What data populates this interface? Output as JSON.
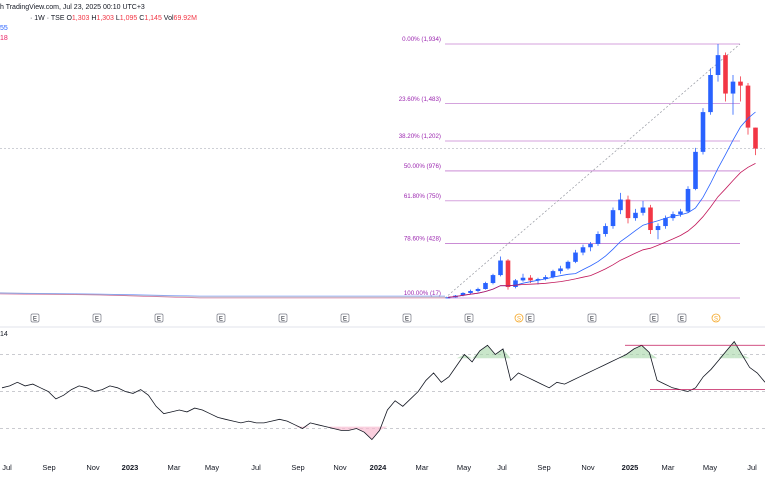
{
  "header": {
    "title": "h TradingView.com, Jul 23, 2025 00:10 UTC+3",
    "symbol": "· 1W · TSE",
    "ohlc": [
      {
        "k": "O",
        "v": "1,303"
      },
      {
        "k": "H",
        "v": "1,303"
      },
      {
        "k": "L",
        "v": "1,095"
      },
      {
        "k": "C",
        "v": "1,145"
      },
      {
        "k": "Vol",
        "v": "69.92M"
      }
    ],
    "ma_fast_label": "55",
    "ma_slow_label": "18",
    "rsi_label": "14"
  },
  "colors": {
    "up": "#2962ff",
    "down": "#f23645",
    "fib": "#9c27b0",
    "ma_fast": "#2962ff",
    "ma_slow": "#c2185b",
    "rsi": "#131722",
    "rsi_overbought_fill": "#a5d6a7",
    "rsi_oversold_fill": "#f8bbd0",
    "earnings": "#787b86",
    "dividend": "#f5a623"
  },
  "chart_data": {
    "type": "candlestick",
    "fib_levels": [
      {
        "label": "0.00% (1,934)",
        "value": 1934
      },
      {
        "label": "23.60% (1,483)",
        "value": 1483
      },
      {
        "label": "38.20% (1,202)",
        "value": 1202
      },
      {
        "label": "50.00% (976)",
        "value": 976
      },
      {
        "label": "61.80% (750)",
        "value": 750
      },
      {
        "label": "78.60% (428)",
        "value": 428
      },
      {
        "label": "100.00% (17)",
        "value": 17
      }
    ],
    "price_range": [
      17,
      1934
    ],
    "current_close": 1145,
    "candles_2024_2025": [
      {
        "o": 17,
        "h": 25,
        "l": 15,
        "c": 22
      },
      {
        "o": 22,
        "h": 40,
        "l": 20,
        "c": 35
      },
      {
        "o": 35,
        "h": 60,
        "l": 30,
        "c": 55
      },
      {
        "o": 55,
        "h": 80,
        "l": 45,
        "c": 70
      },
      {
        "o": 70,
        "h": 95,
        "l": 60,
        "c": 85
      },
      {
        "o": 85,
        "h": 140,
        "l": 80,
        "c": 130
      },
      {
        "o": 130,
        "h": 200,
        "l": 120,
        "c": 190
      },
      {
        "o": 190,
        "h": 330,
        "l": 180,
        "c": 300
      },
      {
        "o": 300,
        "h": 310,
        "l": 80,
        "c": 100
      },
      {
        "o": 100,
        "h": 160,
        "l": 90,
        "c": 150
      },
      {
        "o": 150,
        "h": 200,
        "l": 140,
        "c": 170
      },
      {
        "o": 170,
        "h": 190,
        "l": 130,
        "c": 150
      },
      {
        "o": 150,
        "h": 170,
        "l": 120,
        "c": 160
      },
      {
        "o": 160,
        "h": 190,
        "l": 150,
        "c": 175
      },
      {
        "o": 175,
        "h": 230,
        "l": 165,
        "c": 220
      },
      {
        "o": 220,
        "h": 260,
        "l": 200,
        "c": 240
      },
      {
        "o": 240,
        "h": 300,
        "l": 230,
        "c": 290
      },
      {
        "o": 290,
        "h": 380,
        "l": 280,
        "c": 360
      },
      {
        "o": 360,
        "h": 420,
        "l": 340,
        "c": 400
      },
      {
        "o": 400,
        "h": 440,
        "l": 370,
        "c": 425
      },
      {
        "o": 425,
        "h": 520,
        "l": 410,
        "c": 500
      },
      {
        "o": 500,
        "h": 580,
        "l": 480,
        "c": 560
      },
      {
        "o": 560,
        "h": 700,
        "l": 540,
        "c": 680
      },
      {
        "o": 680,
        "h": 810,
        "l": 650,
        "c": 760
      },
      {
        "o": 760,
        "h": 790,
        "l": 580,
        "c": 620
      },
      {
        "o": 620,
        "h": 690,
        "l": 600,
        "c": 660
      },
      {
        "o": 660,
        "h": 750,
        "l": 640,
        "c": 700
      },
      {
        "o": 700,
        "h": 720,
        "l": 500,
        "c": 530
      },
      {
        "o": 530,
        "h": 580,
        "l": 460,
        "c": 560
      },
      {
        "o": 560,
        "h": 640,
        "l": 540,
        "c": 620
      },
      {
        "o": 620,
        "h": 670,
        "l": 600,
        "c": 650
      },
      {
        "o": 650,
        "h": 690,
        "l": 630,
        "c": 670
      },
      {
        "o": 670,
        "h": 860,
        "l": 660,
        "c": 840
      },
      {
        "o": 840,
        "h": 1150,
        "l": 830,
        "c": 1120
      },
      {
        "o": 1120,
        "h": 1450,
        "l": 1100,
        "c": 1420
      },
      {
        "o": 1420,
        "h": 1750,
        "l": 1400,
        "c": 1700
      },
      {
        "o": 1700,
        "h": 1934,
        "l": 1650,
        "c": 1850
      },
      {
        "o": 1850,
        "h": 1870,
        "l": 1500,
        "c": 1560
      },
      {
        "o": 1560,
        "h": 1700,
        "l": 1400,
        "c": 1650
      },
      {
        "o": 1650,
        "h": 1690,
        "l": 1500,
        "c": 1620
      },
      {
        "o": 1620,
        "h": 1640,
        "l": 1250,
        "c": 1303
      },
      {
        "o": 1303,
        "h": 1303,
        "l": 1095,
        "c": 1145
      }
    ],
    "x_axis_labels": [
      "Jul",
      "Sep",
      "Nov",
      "2023",
      "Mar",
      "May",
      "Jul",
      "Sep",
      "Nov",
      "2024",
      "Mar",
      "May",
      "Jul",
      "Sep",
      "Nov",
      "2025",
      "Mar",
      "May",
      "Jul"
    ],
    "event_markers": [
      "E",
      "E",
      "E",
      "E",
      "E",
      "E",
      "E",
      "E",
      "S",
      "E",
      "E",
      "E",
      "E",
      "S",
      "E"
    ],
    "rsi_levels": [
      70,
      50,
      30
    ]
  }
}
